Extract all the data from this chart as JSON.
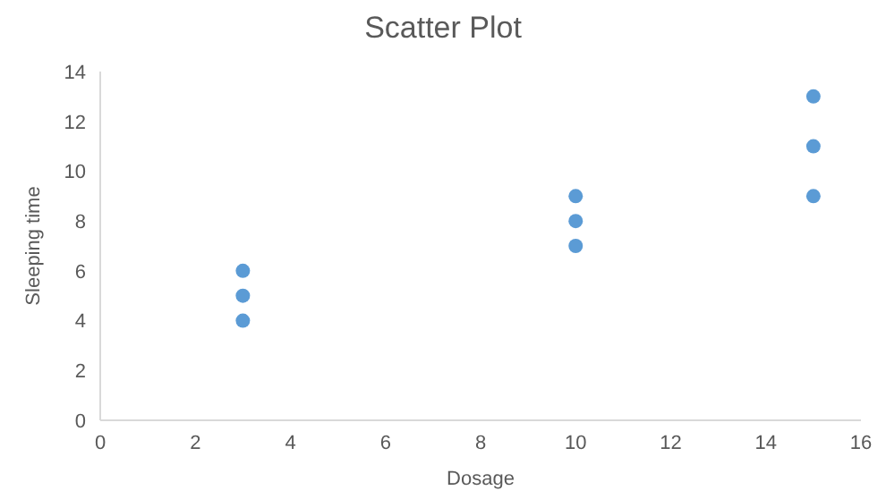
{
  "chart_data": {
    "type": "scatter",
    "title": "Scatter Plot",
    "xlabel": "Dosage",
    "ylabel": "Sleeping time",
    "x": [
      3,
      3,
      3,
      10,
      10,
      10,
      15,
      15,
      15
    ],
    "values": [
      4,
      5,
      6,
      7,
      8,
      9,
      9,
      11,
      13
    ],
    "color": "#5b9bd5",
    "marker": "circle",
    "xlim": [
      0,
      16
    ],
    "xticks": [
      0,
      2,
      4,
      6,
      8,
      10,
      12,
      14,
      16
    ],
    "ylim": [
      0,
      14
    ],
    "yticks": [
      0,
      2,
      4,
      6,
      8,
      10,
      12,
      14
    ],
    "grid": false
  }
}
